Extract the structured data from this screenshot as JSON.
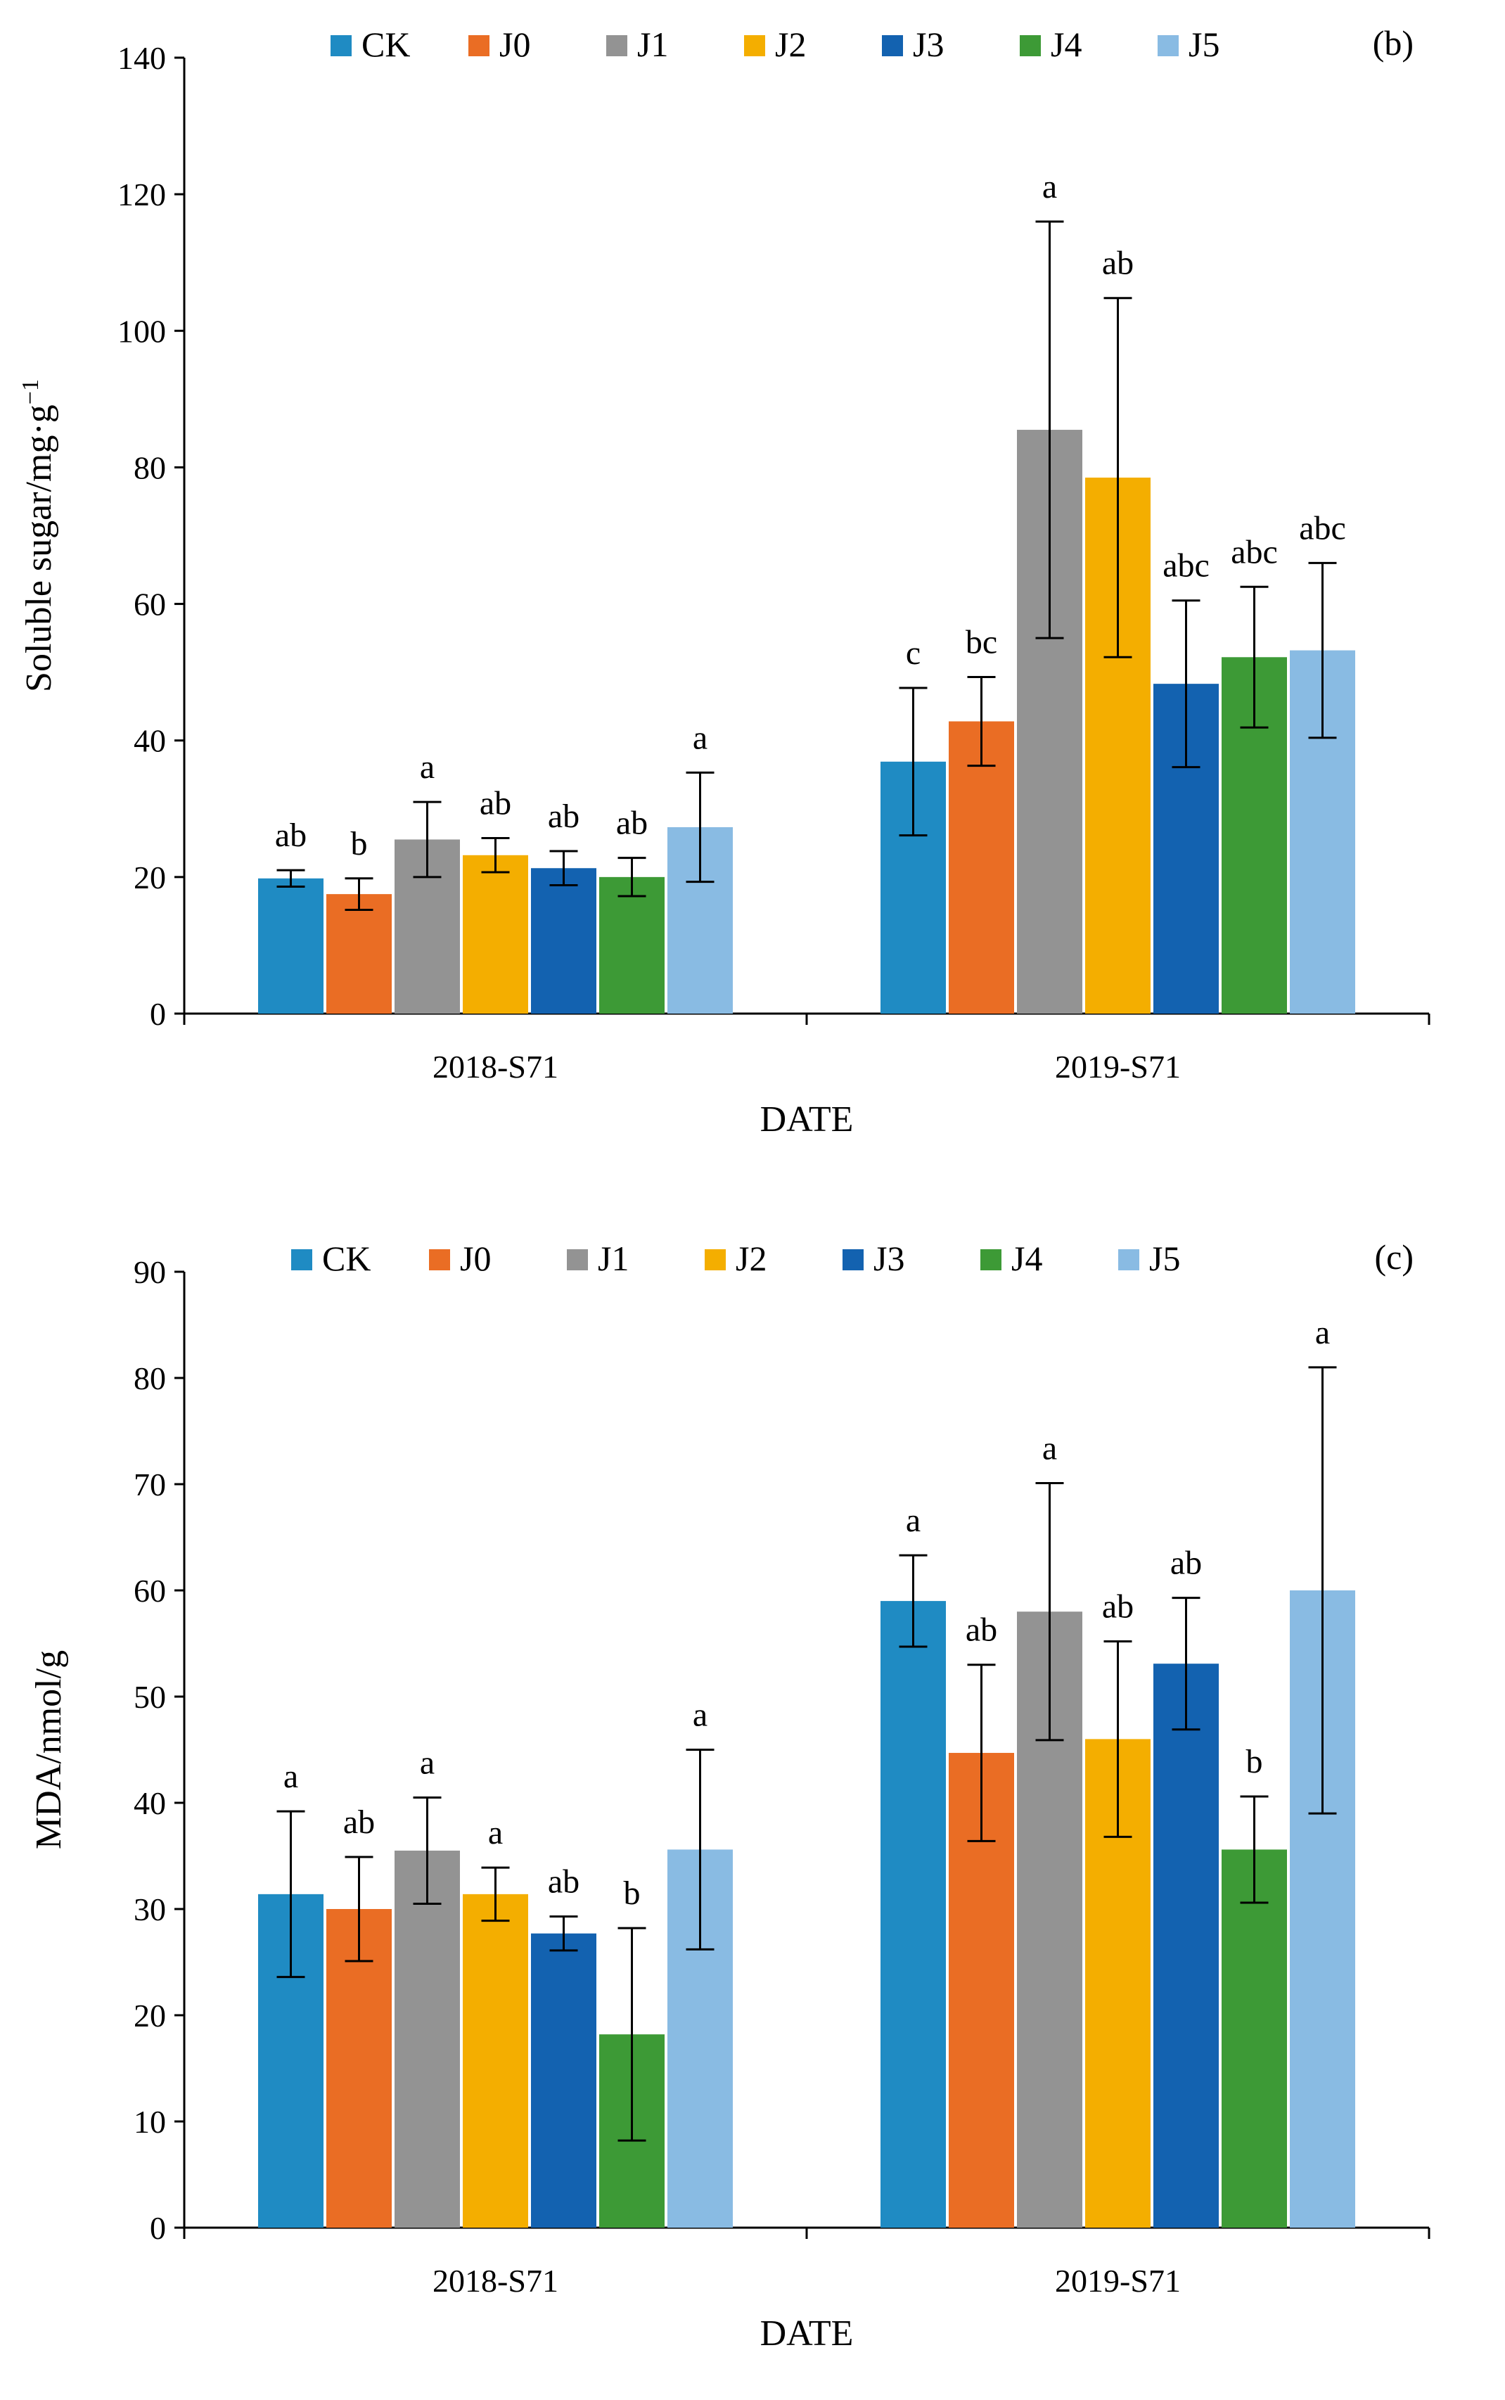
{
  "chart_data": [
    {
      "type": "bar",
      "panel_label": "(b)",
      "title": "",
      "xlabel": "DATE",
      "ylabel_main": "Soluble sugar/mg·g",
      "ylabel_sup": "−1",
      "ylim": [
        0,
        140
      ],
      "ytick_step": 20,
      "categories": [
        "2018-S71",
        "2019-S71"
      ],
      "legend_position": "top",
      "series": [
        {
          "name": "CK",
          "color": "#1f8bc3",
          "values": [
            19.8,
            36.9
          ],
          "errors": [
            1.2,
            10.8
          ],
          "letters": [
            "ab",
            "c"
          ]
        },
        {
          "name": "J0",
          "color": "#ea6d24",
          "values": [
            17.5,
            42.8
          ],
          "errors": [
            2.3,
            6.5
          ],
          "letters": [
            "b",
            "bc"
          ]
        },
        {
          "name": "J1",
          "color": "#939393",
          "values": [
            25.5,
            85.5
          ],
          "errors": [
            5.5,
            30.5
          ],
          "letters": [
            "a",
            "a"
          ]
        },
        {
          "name": "J2",
          "color": "#f4ae00",
          "values": [
            23.2,
            78.5
          ],
          "errors": [
            2.5,
            26.3
          ],
          "letters": [
            "ab",
            "ab"
          ]
        },
        {
          "name": "J3",
          "color": "#1362b0",
          "values": [
            21.3,
            48.3
          ],
          "errors": [
            2.5,
            12.2
          ],
          "letters": [
            "ab",
            "abc"
          ]
        },
        {
          "name": "J4",
          "color": "#3d9a36",
          "values": [
            20.0,
            52.2
          ],
          "errors": [
            2.8,
            10.3
          ],
          "letters": [
            "ab",
            "abc"
          ]
        },
        {
          "name": "J5",
          "color": "#89bbe3",
          "values": [
            27.3,
            53.2
          ],
          "errors": [
            8.0,
            12.8
          ],
          "letters": [
            "a",
            "abc"
          ]
        }
      ]
    },
    {
      "type": "bar",
      "panel_label": "(c)",
      "title": "",
      "xlabel": "DATE",
      "ylabel_main": "MDA/nmol/g",
      "ylabel_sup": "",
      "ylim": [
        0,
        90
      ],
      "ytick_step": 10,
      "categories": [
        "2018-S71",
        "2019-S71"
      ],
      "legend_position": "top",
      "series": [
        {
          "name": "CK",
          "color": "#1f8bc3",
          "values": [
            31.4,
            59.0
          ],
          "errors": [
            7.8,
            4.3
          ],
          "letters": [
            "a",
            "a"
          ]
        },
        {
          "name": "J0",
          "color": "#ea6d24",
          "values": [
            30.0,
            44.7
          ],
          "errors": [
            4.9,
            8.3
          ],
          "letters": [
            "ab",
            "ab"
          ]
        },
        {
          "name": "J1",
          "color": "#939393",
          "values": [
            35.5,
            58.0
          ],
          "errors": [
            5.0,
            12.1
          ],
          "letters": [
            "a",
            "a"
          ]
        },
        {
          "name": "J2",
          "color": "#f4ae00",
          "values": [
            31.4,
            46.0
          ],
          "errors": [
            2.5,
            9.2
          ],
          "letters": [
            "a",
            "ab"
          ]
        },
        {
          "name": "J3",
          "color": "#1362b0",
          "values": [
            27.7,
            53.1
          ],
          "errors": [
            1.6,
            6.2
          ],
          "letters": [
            "ab",
            "ab"
          ]
        },
        {
          "name": "J4",
          "color": "#3d9a36",
          "values": [
            18.2,
            35.6
          ],
          "errors": [
            10.0,
            5.0
          ],
          "letters": [
            "b",
            "b"
          ]
        },
        {
          "name": "J5",
          "color": "#89bbe3",
          "values": [
            35.6,
            60.0
          ],
          "errors": [
            9.4,
            21.0
          ],
          "letters": [
            "a",
            "a"
          ]
        }
      ]
    }
  ]
}
